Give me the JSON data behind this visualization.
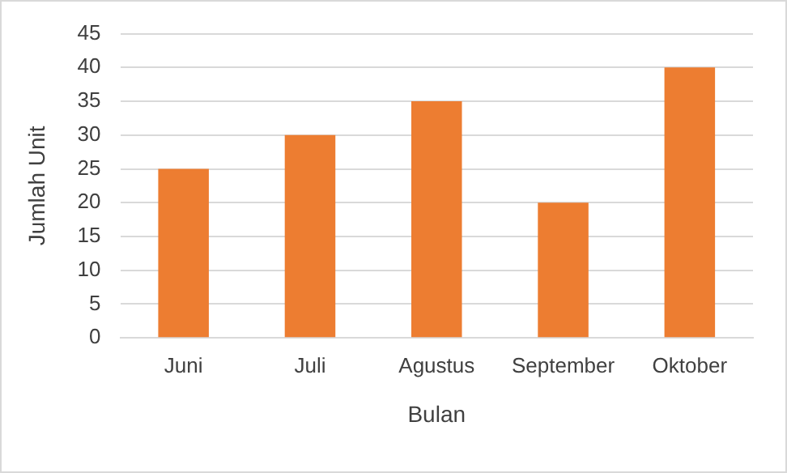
{
  "chart_data": {
    "type": "bar",
    "xlabel": "Bulan",
    "ylabel": "Jumlah Unit",
    "categories": [
      "Juni",
      "Juli",
      "Agustus",
      "September",
      "Oktober"
    ],
    "values": [
      25,
      30,
      35,
      20,
      40
    ],
    "color": "#ed7d31",
    "ylim": [
      0,
      45
    ],
    "yticks": [
      0,
      5,
      10,
      15,
      20,
      25,
      30,
      35,
      40,
      45
    ],
    "grid": "y"
  }
}
